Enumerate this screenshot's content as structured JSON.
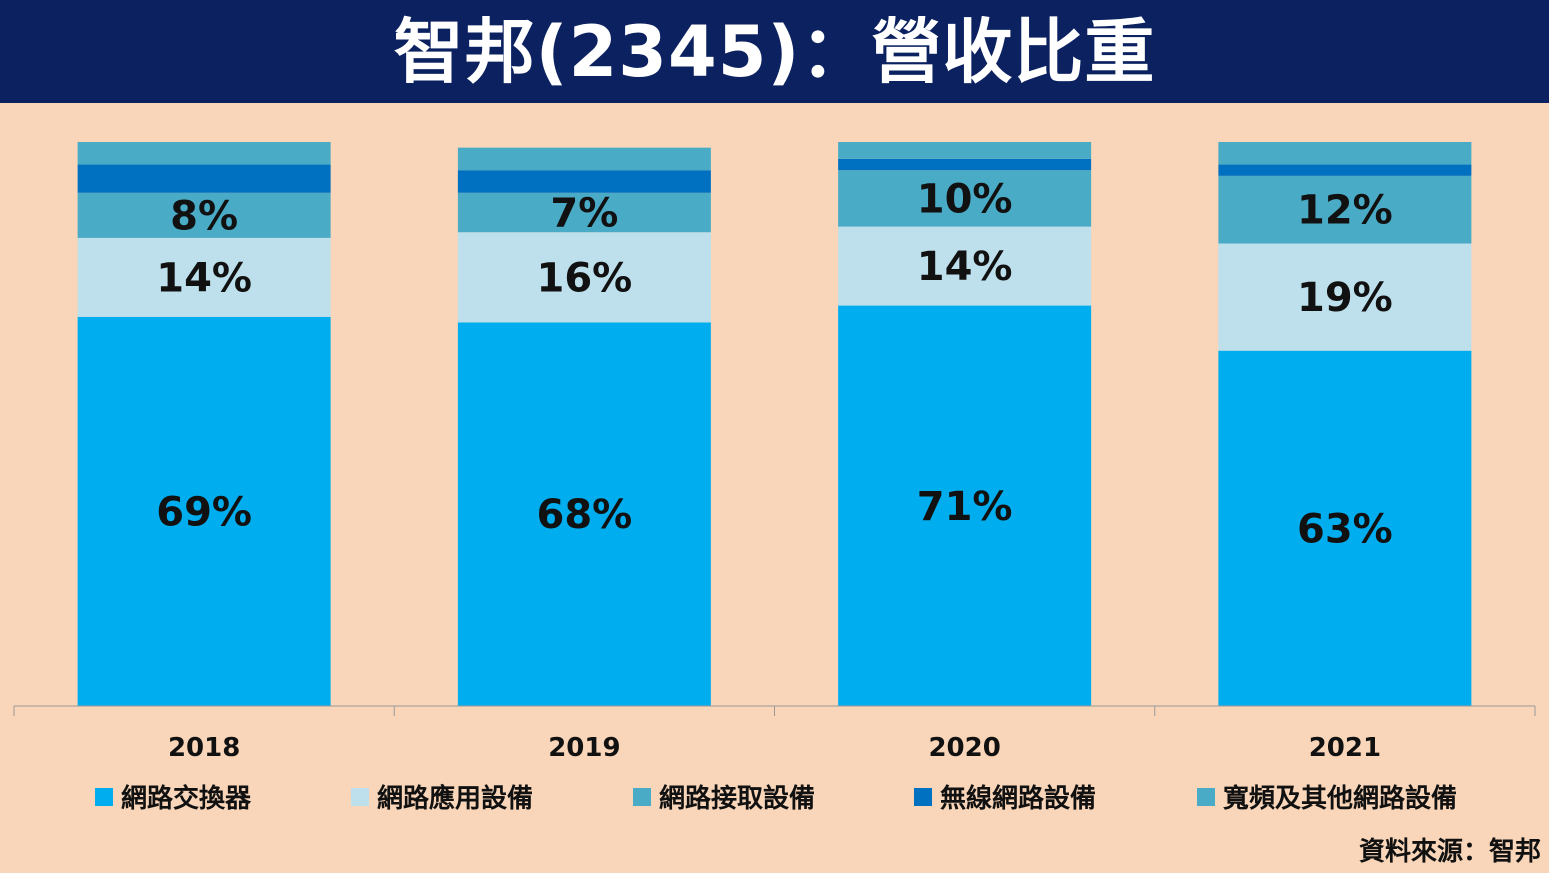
{
  "title": "智邦(2345)：營收比重",
  "source": "資料來源：智邦",
  "colors": {
    "background": "#f9d6b9",
    "title_bg": "#0b2160",
    "axis": "#999999"
  },
  "chart_data": {
    "type": "bar",
    "stacked": true,
    "normalized": true,
    "title": "智邦(2345)：營收比重",
    "categories": [
      "2018",
      "2019",
      "2020",
      "2021"
    ],
    "ylim": [
      0,
      100
    ],
    "series": [
      {
        "name": "網路交換器",
        "color": "#00aeef",
        "values": [
          69,
          68,
          71,
          63
        ],
        "labels": [
          "69%",
          "68%",
          "71%",
          "63%"
        ]
      },
      {
        "name": "網路應用設備",
        "color": "#bde0ec",
        "values": [
          14,
          16,
          14,
          19
        ],
        "labels": [
          "14%",
          "16%",
          "14%",
          "19%"
        ]
      },
      {
        "name": "網路接取設備",
        "color": "#4aabc6",
        "values": [
          8,
          7,
          10,
          12
        ],
        "labels": [
          "8%",
          "7%",
          "10%",
          "12%"
        ]
      },
      {
        "name": "無線網路設備",
        "color": "#0070c0",
        "values": [
          5,
          4,
          2,
          2
        ],
        "labels": [
          null,
          null,
          null,
          null
        ]
      },
      {
        "name": "寬頻及其他網路設備",
        "color": "#4aabc6",
        "values": [
          4,
          4,
          3,
          4
        ],
        "labels": [
          null,
          null,
          null,
          null
        ]
      }
    ],
    "legend_position": "bottom"
  }
}
